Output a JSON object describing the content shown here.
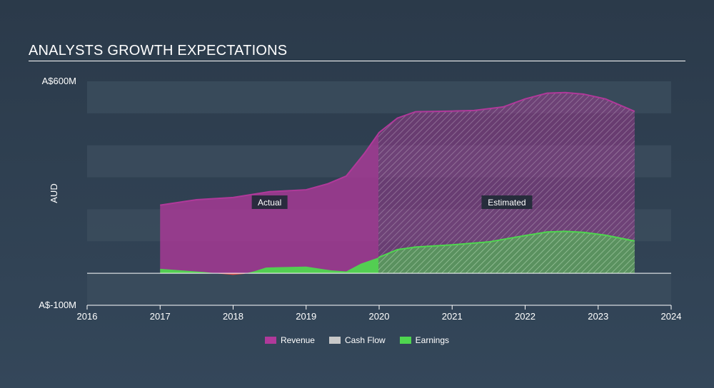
{
  "header": {
    "title": "ANALYSTS GROWTH EXPECTATIONS"
  },
  "colors": {
    "revenue": "#b0399a",
    "cash_flow": "#c8c8c8",
    "earnings": "#4fd64f",
    "earnings_negative": "#e8514a",
    "band": "#3b4c5d"
  },
  "chart_data": {
    "type": "area",
    "title": "ANALYSTS GROWTH EXPECTATIONS",
    "ylabel": "AUD",
    "xlabel": "",
    "xlim": [
      2016,
      2024
    ],
    "ylim": [
      -100,
      600
    ],
    "y_tick_labels": {
      "top": "A$600M",
      "bottom": "A$-100M"
    },
    "x_ticks": [
      "2016",
      "2017",
      "2018",
      "2019",
      "2020",
      "2021",
      "2022",
      "2023",
      "2024"
    ],
    "estimate_start": 2020,
    "annotations": {
      "actual": "Actual",
      "estimated": "Estimated"
    },
    "series": [
      {
        "name": "Revenue",
        "x": [
          2017.0,
          2017.5,
          2018.0,
          2018.5,
          2019.0,
          2019.3,
          2019.55,
          2019.8,
          2020.0,
          2020.25,
          2020.5,
          2021.0,
          2021.3,
          2021.7,
          2022.0,
          2022.3,
          2022.55,
          2022.8,
          2023.1,
          2023.5
        ],
        "values": [
          213,
          230,
          237,
          255,
          261,
          280,
          304,
          375,
          440,
          485,
          505,
          507,
          509,
          520,
          545,
          563,
          565,
          560,
          545,
          506
        ]
      },
      {
        "name": "Cash Flow",
        "x": [],
        "values": []
      },
      {
        "name": "Earnings",
        "x": [
          2017.0,
          2017.3,
          2017.6,
          2017.8,
          2018.0,
          2018.15,
          2018.3,
          2018.45,
          2018.6,
          2019.0,
          2019.2,
          2019.35,
          2019.55,
          2019.75,
          2020.0,
          2020.25,
          2020.5,
          2021.0,
          2021.5,
          2021.8,
          2022.0,
          2022.3,
          2022.55,
          2022.8,
          2023.1,
          2023.5
        ],
        "values": [
          14,
          9,
          4,
          -1,
          -5,
          -2,
          7,
          18,
          19,
          21,
          14,
          9,
          6,
          30,
          50,
          74,
          82,
          89,
          98,
          110,
          118,
          129,
          131,
          128,
          119,
          101
        ]
      }
    ],
    "legend": [
      "Revenue",
      "Cash Flow",
      "Earnings"
    ]
  }
}
